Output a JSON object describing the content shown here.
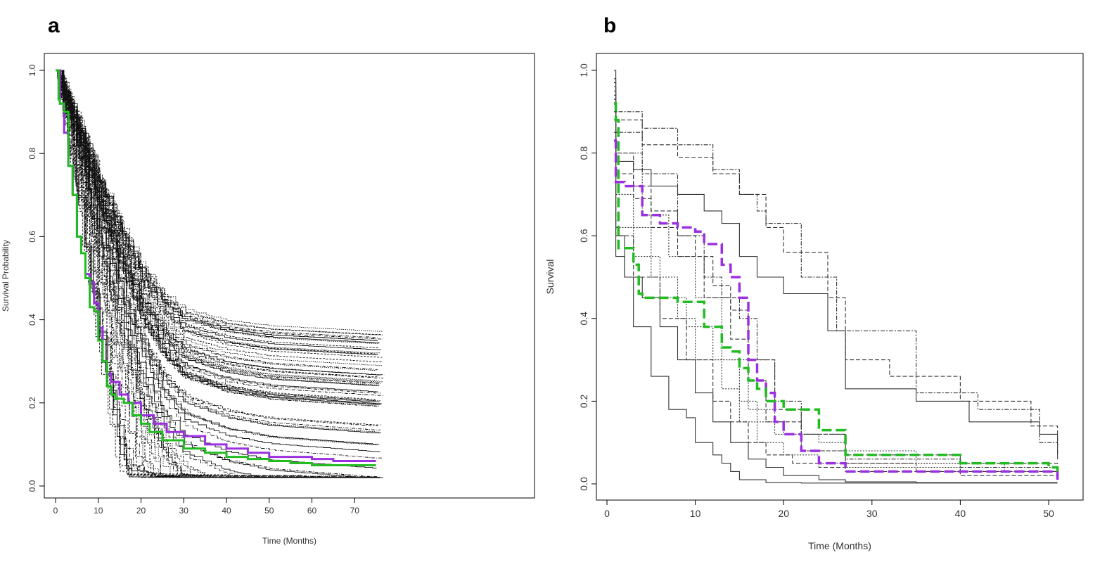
{
  "panels": {
    "a": {
      "letter": "a"
    },
    "b": {
      "letter": "b"
    }
  },
  "colors": {
    "purple": "#9b30e0",
    "green": "#22bb22",
    "ensemble": "#000000"
  },
  "chart_data": [
    {
      "type": "line",
      "panel": "a",
      "title": "",
      "xlabel": "Time (Months)",
      "ylabel": "Survival Probability",
      "xlim": [
        0,
        75
      ],
      "ylim": [
        0,
        1.0
      ],
      "x_ticks": [
        "0",
        "10",
        "20",
        "30",
        "40",
        "50",
        "60",
        "70"
      ],
      "y_ticks": [
        "0.0",
        "0.2",
        "0.4",
        "0.6",
        "0.8",
        "1.0"
      ],
      "grid": false,
      "ensemble": {
        "count": 80,
        "style": "black thin solid/dashed/dotted step curves",
        "median_at": {
          "x": [
            0,
            5,
            10,
            15,
            20,
            25,
            30,
            40,
            50,
            75
          ],
          "y": [
            1.0,
            0.82,
            0.62,
            0.45,
            0.3,
            0.2,
            0.14,
            0.1,
            0.08,
            0.06
          ]
        }
      },
      "series": [
        {
          "color": "#9b30e0",
          "style": "solid",
          "x": [
            0,
            1,
            2,
            3,
            4,
            5,
            6,
            7,
            8,
            9,
            10,
            11,
            12,
            13,
            15,
            17,
            20,
            23,
            26,
            30,
            35,
            40,
            45,
            50,
            55,
            60,
            65,
            70,
            75
          ],
          "y": [
            1.0,
            0.92,
            0.85,
            0.77,
            0.7,
            0.6,
            0.56,
            0.51,
            0.49,
            0.44,
            0.38,
            0.3,
            0.27,
            0.25,
            0.22,
            0.2,
            0.17,
            0.15,
            0.13,
            0.12,
            0.1,
            0.09,
            0.08,
            0.07,
            0.07,
            0.065,
            0.06,
            0.06,
            0.06
          ]
        },
        {
          "color": "#22bb22",
          "style": "solid",
          "x": [
            0,
            0.7,
            1,
            2,
            3,
            4,
            5,
            6,
            7,
            8,
            9,
            10,
            11,
            12,
            13,
            14,
            16,
            18,
            20,
            22,
            25,
            30,
            35,
            40,
            45,
            50,
            55,
            60,
            65,
            70,
            75
          ],
          "y": [
            1.0,
            0.93,
            0.92,
            0.9,
            0.77,
            0.7,
            0.6,
            0.56,
            0.5,
            0.43,
            0.42,
            0.35,
            0.3,
            0.24,
            0.22,
            0.21,
            0.2,
            0.17,
            0.15,
            0.13,
            0.11,
            0.09,
            0.08,
            0.07,
            0.065,
            0.06,
            0.055,
            0.05,
            0.05,
            0.05,
            0.05
          ]
        }
      ]
    },
    {
      "type": "line",
      "panel": "b",
      "title": "",
      "xlabel": "Time (Months)",
      "ylabel": "Survival",
      "xlim": [
        0,
        52
      ],
      "ylim": [
        0,
        1.0
      ],
      "x_ticks": [
        "0",
        "10",
        "20",
        "30",
        "40",
        "50"
      ],
      "y_ticks": [
        "0.0",
        "0.2",
        "0.4",
        "0.6",
        "0.8",
        "1.0"
      ],
      "grid": false,
      "ensemble": {
        "count": 12,
        "style": "grey step curves, solid/dashed/dotted/dash-dot",
        "curves": [
          {
            "dash": "",
            "x": [
              0.8,
              1,
              2,
              3,
              5,
              7,
              9,
              10,
              12,
              13,
              14,
              15,
              18,
              22,
              27,
              35,
              51
            ],
            "y": [
              0.98,
              0.6,
              0.5,
              0.38,
              0.26,
              0.18,
              0.16,
              0.1,
              0.07,
              0.05,
              0.03,
              0.01,
              0.003,
              0.002,
              0.002,
              0.002,
              0.002
            ]
          },
          {
            "dash": "",
            "x": [
              0.8,
              1,
              3,
              5,
              8,
              11,
              13,
              15,
              17,
              20,
              25,
              27,
              35,
              41,
              49,
              51
            ],
            "y": [
              1.0,
              0.78,
              0.76,
              0.72,
              0.7,
              0.66,
              0.63,
              0.55,
              0.5,
              0.46,
              0.37,
              0.23,
              0.2,
              0.15,
              0.12,
              0.07
            ]
          },
          {
            "dash": "6,3",
            "x": [
              0.8,
              1,
              4,
              8,
              12,
              15,
              18,
              20,
              25,
              27,
              32,
              40,
              48,
              51
            ],
            "y": [
              0.97,
              0.88,
              0.82,
              0.79,
              0.75,
              0.7,
              0.62,
              0.56,
              0.45,
              0.3,
              0.26,
              0.2,
              0.14,
              0.06
            ]
          },
          {
            "dash": "6,3",
            "x": [
              0.8,
              1,
              3,
              5,
              8,
              11,
              14,
              16,
              18,
              22,
              27,
              35,
              51
            ],
            "y": [
              0.96,
              0.75,
              0.69,
              0.62,
              0.55,
              0.45,
              0.35,
              0.25,
              0.15,
              0.08,
              0.05,
              0.03,
              0.01
            ]
          },
          {
            "dash": "2,2",
            "x": [
              0.8,
              1,
              3,
              5,
              8,
              10,
              13,
              15,
              17,
              20,
              24,
              27,
              40,
              51
            ],
            "y": [
              0.92,
              0.7,
              0.62,
              0.5,
              0.4,
              0.3,
              0.23,
              0.15,
              0.1,
              0.07,
              0.05,
              0.04,
              0.03,
              0.02
            ]
          },
          {
            "dash": "6,2,2,2",
            "x": [
              0.8,
              1,
              4,
              8,
              12,
              15,
              17,
              18,
              22,
              26,
              35,
              42,
              49,
              51
            ],
            "y": [
              0.95,
              0.9,
              0.86,
              0.82,
              0.76,
              0.7,
              0.66,
              0.63,
              0.5,
              0.37,
              0.22,
              0.18,
              0.1,
              0.06
            ]
          },
          {
            "dash": "2,2",
            "x": [
              0.8,
              1,
              3,
              6,
              9,
              12,
              15,
              17,
              20,
              24,
              27,
              35,
              45,
              51
            ],
            "y": [
              0.9,
              0.62,
              0.55,
              0.45,
              0.38,
              0.3,
              0.2,
              0.15,
              0.12,
              0.1,
              0.08,
              0.05,
              0.03,
              0.02
            ]
          },
          {
            "dash": "6,3",
            "x": [
              0.8,
              1,
              3,
              6,
              9,
              12,
              14,
              16,
              18,
              21,
              24,
              27,
              40,
              51
            ],
            "y": [
              0.88,
              0.6,
              0.5,
              0.4,
              0.3,
              0.2,
              0.15,
              0.1,
              0.07,
              0.05,
              0.04,
              0.03,
              0.02,
              0.01
            ]
          },
          {
            "dash": "6,2,2,2",
            "x": [
              0.8,
              1,
              4,
              8,
              11,
              13,
              15,
              17,
              19,
              22,
              27,
              40,
              51
            ],
            "y": [
              0.94,
              0.85,
              0.75,
              0.6,
              0.5,
              0.45,
              0.4,
              0.3,
              0.2,
              0.12,
              0.06,
              0.04,
              0.02
            ]
          },
          {
            "dash": "2,2",
            "x": [
              0.8,
              1,
              4,
              7,
              10,
              13,
              16,
              19,
              22,
              27,
              40,
              51
            ],
            "y": [
              0.9,
              0.8,
              0.65,
              0.55,
              0.45,
              0.3,
              0.18,
              0.12,
              0.08,
              0.05,
              0.03,
              0.02
            ]
          },
          {
            "dash": "6,3",
            "x": [
              0.8,
              1,
              3,
              5,
              8,
              10,
              12,
              14,
              16,
              19,
              22,
              27,
              40,
              51
            ],
            "y": [
              0.93,
              0.8,
              0.72,
              0.66,
              0.6,
              0.55,
              0.48,
              0.42,
              0.3,
              0.18,
              0.12,
              0.07,
              0.05,
              0.03
            ]
          },
          {
            "dash": "",
            "x": [
              0.8,
              1,
              2,
              4,
              6,
              8,
              10,
              12,
              14,
              16,
              18,
              20,
              24,
              27,
              35,
              51
            ],
            "y": [
              0.85,
              0.55,
              0.5,
              0.45,
              0.38,
              0.3,
              0.22,
              0.15,
              0.1,
              0.06,
              0.04,
              0.02,
              0.01,
              0.005,
              0.003,
              0.003
            ]
          }
        ]
      },
      "series": [
        {
          "color": "#9b30e0",
          "style": "dashed",
          "x": [
            0.8,
            1,
            2,
            3,
            4,
            6,
            8,
            10,
            11,
            13,
            14,
            15,
            16,
            17,
            18,
            19,
            20,
            22,
            24,
            27,
            30,
            40,
            51
          ],
          "y": [
            0.83,
            0.73,
            0.72,
            0.72,
            0.65,
            0.63,
            0.62,
            0.61,
            0.58,
            0.53,
            0.5,
            0.45,
            0.3,
            0.25,
            0.22,
            0.15,
            0.12,
            0.08,
            0.05,
            0.03,
            0.03,
            0.03,
            0.01
          ]
        },
        {
          "color": "#22bb22",
          "style": "dashed",
          "x": [
            0.8,
            1,
            1.3,
            3,
            3.6,
            4,
            8,
            10,
            11,
            13,
            14,
            15,
            16,
            17,
            18,
            20,
            24,
            27,
            30,
            40,
            50,
            51
          ],
          "y": [
            0.92,
            0.88,
            0.57,
            0.53,
            0.46,
            0.45,
            0.44,
            0.44,
            0.38,
            0.33,
            0.32,
            0.28,
            0.25,
            0.23,
            0.2,
            0.18,
            0.13,
            0.07,
            0.07,
            0.05,
            0.04,
            0.02
          ]
        }
      ]
    }
  ]
}
